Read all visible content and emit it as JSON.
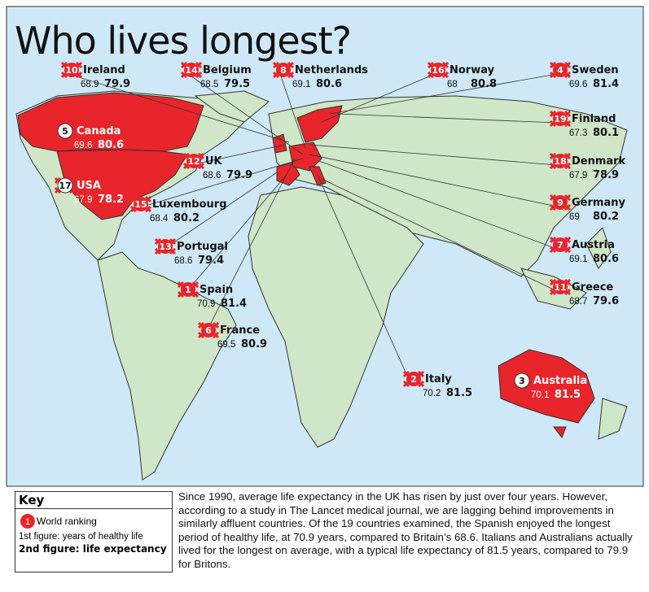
{
  "title": "Who lives longest?",
  "countries": [
    {
      "rank": 10,
      "name": "Ireland",
      "healthy": 68.9,
      "life": 79.9
    },
    {
      "rank": 14,
      "name": "Belgium",
      "healthy": 68.5,
      "life": 79.5
    },
    {
      "rank": 8,
      "name": "Netherlands",
      "healthy": 69.1,
      "life": 80.6
    },
    {
      "rank": 16,
      "name": "Norway",
      "healthy": 68,
      "life": 80.8
    },
    {
      "rank": 4,
      "name": "Sweden",
      "healthy": 69.6,
      "life": 81.4
    },
    {
      "rank": 5,
      "name": "Canada",
      "healthy": 69.6,
      "life": 80.6
    },
    {
      "rank": 19,
      "name": "Finland",
      "healthy": 67.3,
      "life": 80.1
    },
    {
      "rank": 12,
      "name": "UK",
      "healthy": 68.6,
      "life": 79.9
    },
    {
      "rank": 18,
      "name": "Denmark",
      "healthy": 67.9,
      "life": 78.9
    },
    {
      "rank": 17,
      "name": "USA",
      "healthy": 67.9,
      "life": 78.2
    },
    {
      "rank": 15,
      "name": "Luxembourg",
      "healthy": 68.4,
      "life": 80.2
    },
    {
      "rank": 9,
      "name": "Germany",
      "healthy": 69,
      "life": 80.2
    },
    {
      "rank": 13,
      "name": "Portugal",
      "healthy": 68.6,
      "life": 79.4
    },
    {
      "rank": 7,
      "name": "Austria",
      "healthy": 69.1,
      "life": 80.6
    },
    {
      "rank": 1,
      "name": "Spain",
      "healthy": 70.9,
      "life": 81.4
    },
    {
      "rank": 11,
      "name": "Greece",
      "healthy": 68.7,
      "life": 79.6
    },
    {
      "rank": 6,
      "name": "France",
      "healthy": 69.5,
      "life": 80.9
    },
    {
      "rank": 2,
      "name": "Italy",
      "healthy": 70.2,
      "life": 81.5
    },
    {
      "rank": 3,
      "name": "Australia",
      "healthy": 70.1,
      "life": 81.5
    }
  ],
  "key": {
    "title": "Key",
    "rank_label": "World ranking",
    "rank_example": 1,
    "first": "1st figure: years of healthy life",
    "second": "2nd figure: life expectancy"
  },
  "body": "Since 1990, average life expectancy in the UK has risen by just over four years. However, according to a study in The Lancet medical journal, we are lagging behind improvements in similarly affluent countries. Of the 19 countries examined, the Spanish enjoyed the longest period of healthy life, at 70.9 years, compared to Britain’s 68.6. Italians and Australians actually lived for the longest on average, with a typical life expectancy of 81.5 years, compared to 79.9 for Britons."
}
